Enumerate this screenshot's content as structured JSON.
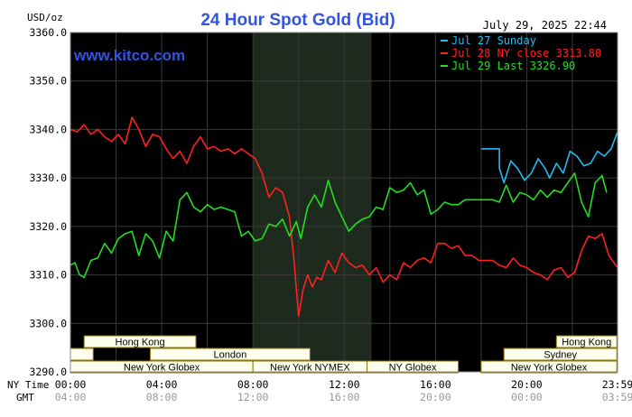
{
  "header": {
    "unit_label": "USD/oz",
    "title": "24 Hour Spot Gold (Bid)",
    "datetime": "July 29, 2025 22:44",
    "watermark": "www.kitco.com"
  },
  "legend": [
    {
      "label": "Jul 27 Sunday",
      "color": "#22bbee"
    },
    {
      "label": "Jul 28 NY close 3313.80",
      "color": "#ff2020"
    },
    {
      "label": "Jul 29 Last 3326.90",
      "color": "#22dd22"
    }
  ],
  "sessions": {
    "row1": [
      {
        "label": "Hong Kong",
        "start": 0.6,
        "end": 5.5
      },
      {
        "label": "Hong Kong",
        "start": 21.3,
        "end": 23.95
      }
    ],
    "row2": [
      {
        "label": "",
        "start": 0.0,
        "end": 1.0
      },
      {
        "label": "London",
        "start": 3.5,
        "end": 10.5
      },
      {
        "label": "Sydney",
        "start": 19.0,
        "end": 23.95
      }
    ],
    "row3": [
      {
        "label": "New York Globex",
        "start": 0.0,
        "end": 8.0
      },
      {
        "label": "New York NYMEX",
        "start": 8.0,
        "end": 13.0
      },
      {
        "label": "NY Globex",
        "start": 13.0,
        "end": 17.0
      },
      {
        "label": "New York Globex",
        "start": 18.0,
        "end": 23.95
      }
    ]
  },
  "time_rows": {
    "ny_label": "NY Time",
    "gmt_label": "GMT",
    "ny_ticks": [
      "00:00",
      "04:00",
      "08:00",
      "12:00",
      "16:00",
      "20:00",
      "23:59"
    ],
    "gmt_ticks": [
      "04:00",
      "08:00",
      "12:00",
      "16:00",
      "20:00",
      "00:00",
      "03:59"
    ]
  },
  "colors": {
    "background": "#000000",
    "grid": "#3a3a3a",
    "nymex_shade": "#1e2a1e",
    "session_bar": "#fffff0",
    "session_border": "#8b7500",
    "title": "#3355dd",
    "watermark": "#3355dd"
  },
  "chart_data": {
    "type": "line",
    "title": "24 Hour Spot Gold (Bid)",
    "ylabel": "USD/oz",
    "xlabel": "",
    "ylim": [
      3290,
      3360
    ],
    "xlim": [
      0,
      23.98
    ],
    "yticks": [
      "3290.0",
      "3300.0",
      "3310.0",
      "3320.0",
      "3330.0",
      "3340.0",
      "3350.0",
      "3360.0"
    ],
    "grid": true,
    "legend_position": "top-right",
    "shaded_region": [
      8.0,
      13.2
    ],
    "series": [
      {
        "name": "Jul 27 Sunday",
        "color": "#22bbee",
        "x": [
          18.0,
          18.8,
          18.8,
          19.0,
          19.3,
          19.6,
          19.9,
          20.2,
          20.5,
          20.8,
          21.0,
          21.3,
          21.6,
          21.9,
          22.2,
          22.5,
          22.8,
          23.1,
          23.4,
          23.7,
          23.98
        ],
        "y": [
          3336.0,
          3336.0,
          3332.0,
          3329.0,
          3333.5,
          3332.0,
          3329.5,
          3331.0,
          3334.0,
          3332.0,
          3330.0,
          3333.0,
          3331.0,
          3335.5,
          3334.5,
          3332.5,
          3333.0,
          3335.5,
          3334.5,
          3336.0,
          3339.5
        ]
      },
      {
        "name": "Jul 28 NY close 3313.80",
        "color": "#ff2020",
        "x": [
          0.0,
          0.3,
          0.6,
          0.9,
          1.2,
          1.5,
          1.8,
          2.1,
          2.4,
          2.7,
          3.0,
          3.3,
          3.6,
          3.9,
          4.2,
          4.5,
          4.8,
          5.1,
          5.4,
          5.7,
          6.0,
          6.3,
          6.6,
          6.9,
          7.2,
          7.5,
          7.8,
          8.1,
          8.4,
          8.7,
          9.0,
          9.3,
          9.6,
          9.8,
          10.0,
          10.2,
          10.4,
          10.6,
          10.8,
          11.0,
          11.3,
          11.6,
          11.9,
          12.2,
          12.5,
          12.8,
          13.1,
          13.4,
          13.7,
          14.0,
          14.3,
          14.6,
          14.9,
          15.2,
          15.5,
          15.8,
          16.1,
          16.4,
          16.7,
          17.0,
          17.3,
          17.6,
          17.9,
          18.2,
          18.5,
          18.8,
          19.1,
          19.4,
          19.7,
          20.0,
          20.3,
          20.6,
          20.9,
          21.2,
          21.5,
          21.8,
          22.1,
          22.4,
          22.7,
          23.0,
          23.3,
          23.6,
          23.98
        ],
        "y": [
          3340.0,
          3339.5,
          3341.0,
          3339.0,
          3340.0,
          3338.5,
          3337.5,
          3339.0,
          3337.0,
          3342.5,
          3340.0,
          3336.5,
          3339.0,
          3338.5,
          3336.0,
          3334.0,
          3335.5,
          3333.0,
          3336.5,
          3338.5,
          3336.0,
          3336.5,
          3335.5,
          3336.0,
          3335.0,
          3336.0,
          3335.0,
          3334.0,
          3331.0,
          3326.0,
          3328.0,
          3327.0,
          3322.0,
          3313.0,
          3301.5,
          3307.0,
          3310.0,
          3307.5,
          3309.5,
          3309.0,
          3313.0,
          3310.5,
          3314.5,
          3312.5,
          3311.5,
          3312.0,
          3310.0,
          3311.5,
          3308.5,
          3310.0,
          3309.0,
          3312.5,
          3311.5,
          3313.0,
          3313.5,
          3312.5,
          3316.5,
          3316.5,
          3315.5,
          3316.0,
          3314.0,
          3314.0,
          3313.0,
          3313.0,
          3313.0,
          3312.0,
          3311.5,
          3313.5,
          3312.0,
          3311.5,
          3310.5,
          3310.0,
          3309.0,
          3311.0,
          3311.5,
          3309.5,
          3310.5,
          3315.0,
          3318.0,
          3317.5,
          3318.5,
          3314.0,
          3311.5
        ]
      },
      {
        "name": "Jul 29 Last 3326.90",
        "color": "#22dd22",
        "x": [
          0.0,
          0.2,
          0.4,
          0.6,
          0.9,
          1.2,
          1.5,
          1.8,
          2.1,
          2.4,
          2.7,
          3.0,
          3.3,
          3.6,
          3.9,
          4.2,
          4.5,
          4.8,
          5.1,
          5.4,
          5.7,
          6.0,
          6.3,
          6.6,
          6.9,
          7.2,
          7.5,
          7.8,
          8.1,
          8.4,
          8.7,
          9.0,
          9.3,
          9.6,
          9.9,
          10.1,
          10.4,
          10.7,
          11.0,
          11.3,
          11.6,
          11.9,
          12.2,
          12.5,
          12.8,
          13.1,
          13.4,
          13.7,
          14.0,
          14.3,
          14.6,
          14.9,
          15.2,
          15.5,
          15.8,
          16.1,
          16.4,
          16.7,
          17.0,
          17.3,
          17.6,
          17.9,
          18.2,
          18.5,
          18.8,
          19.1,
          19.4,
          19.7,
          20.0,
          20.3,
          20.6,
          20.9,
          21.2,
          21.5,
          21.8,
          22.1,
          22.4,
          22.7,
          23.0,
          23.3,
          23.5
        ],
        "y": [
          3312.0,
          3312.5,
          3310.0,
          3309.5,
          3313.0,
          3313.5,
          3316.5,
          3314.5,
          3317.5,
          3318.5,
          3319.0,
          3314.0,
          3318.5,
          3317.0,
          3313.5,
          3319.0,
          3317.0,
          3325.5,
          3327.0,
          3324.0,
          3323.0,
          3324.5,
          3323.5,
          3324.0,
          3323.5,
          3323.0,
          3318.0,
          3319.0,
          3317.0,
          3317.5,
          3320.5,
          3320.0,
          3321.5,
          3318.0,
          3321.0,
          3317.5,
          3324.0,
          3326.5,
          3324.0,
          3329.5,
          3325.0,
          3322.0,
          3319.0,
          3320.5,
          3321.5,
          3322.0,
          3324.0,
          3323.5,
          3328.0,
          3327.0,
          3327.5,
          3329.0,
          3326.5,
          3327.5,
          3322.5,
          3323.5,
          3325.0,
          3324.5,
          3324.5,
          3325.5,
          3325.5,
          3325.5,
          3325.5,
          3325.5,
          3325.0,
          3328.5,
          3325.0,
          3327.0,
          3326.5,
          3325.5,
          3327.5,
          3326.0,
          3327.5,
          3327.0,
          3329.0,
          3331.0,
          3325.0,
          3322.0,
          3329.0,
          3330.5,
          3327.0
        ]
      }
    ]
  }
}
